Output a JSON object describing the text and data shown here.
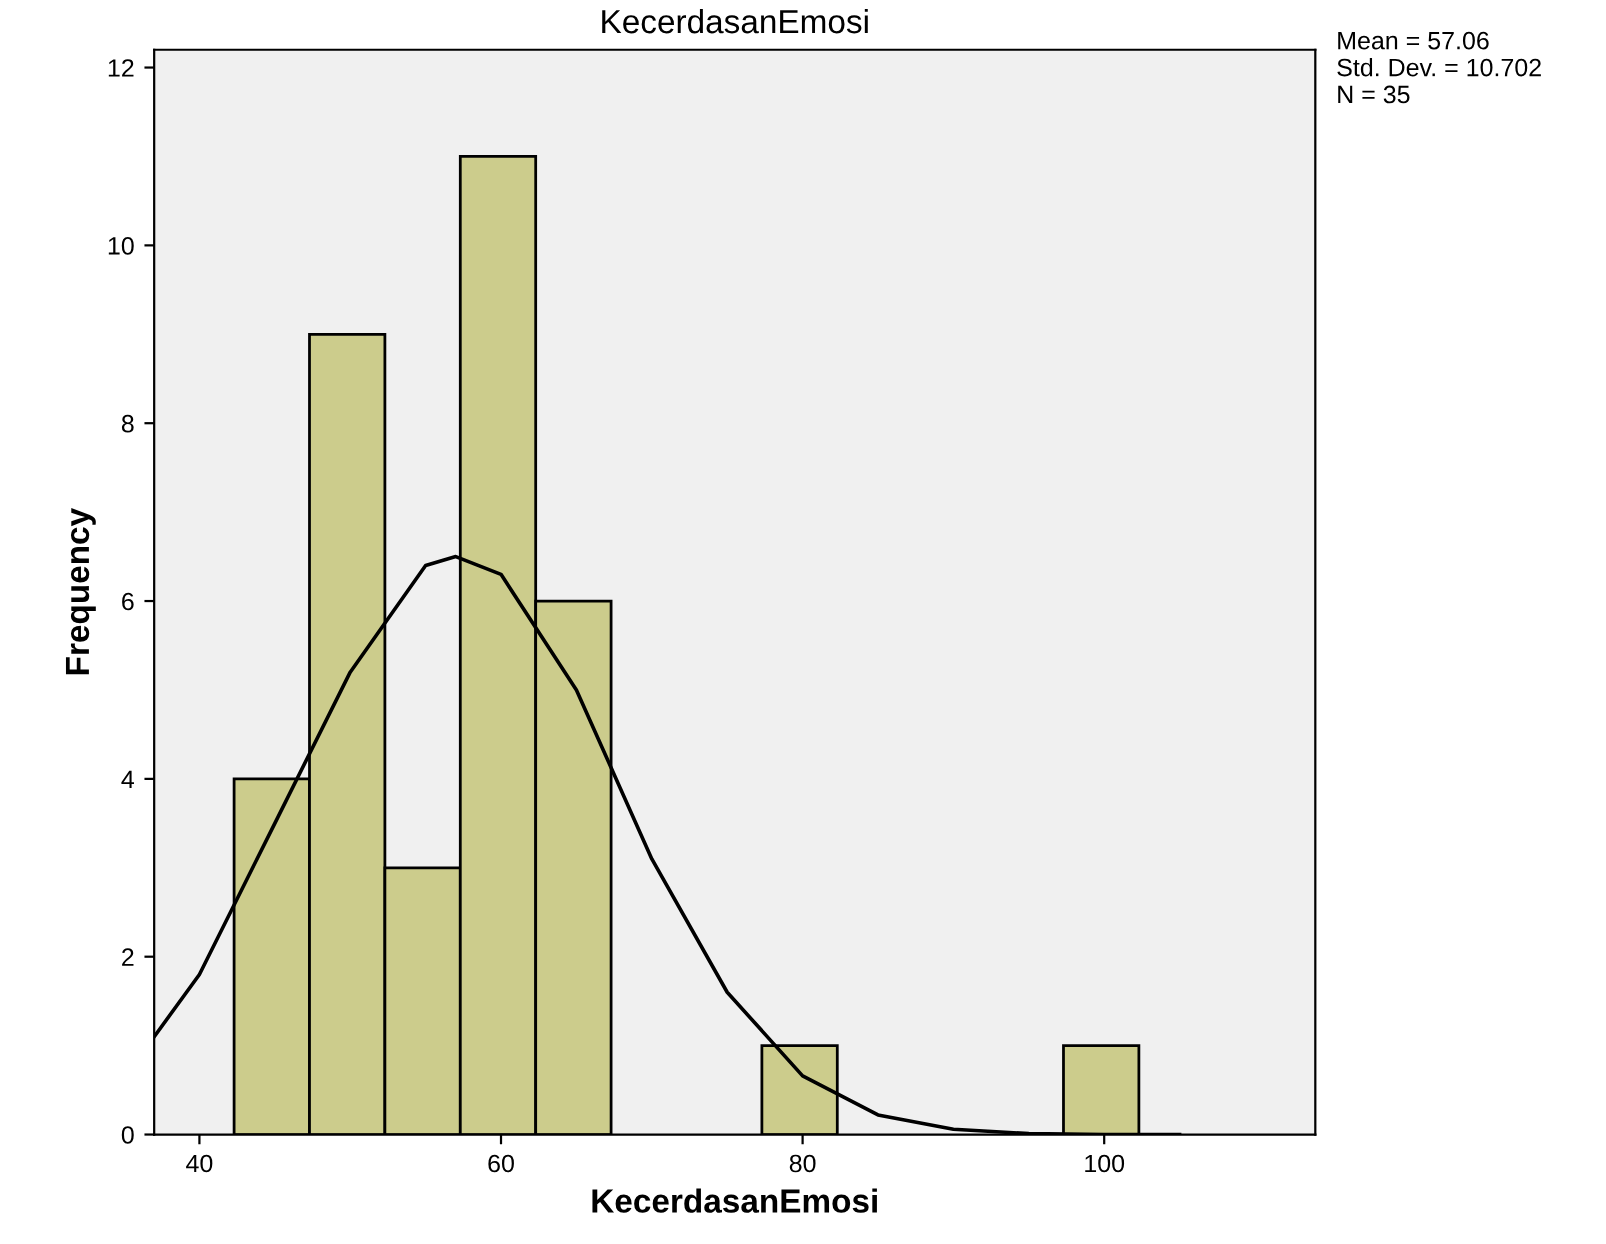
{
  "chart_data": {
    "type": "histogram",
    "title": "KecerdasanEmosi",
    "xlabel": "KecerdasanEmosi",
    "ylabel": "Frequency",
    "bins": [
      42.3,
      47.3,
      52.3,
      57.3,
      62.3,
      67.3,
      72.3,
      77.3,
      82.3,
      87.3,
      92.3,
      97.3,
      102.3
    ],
    "values": [
      4,
      9,
      3,
      11,
      6,
      0,
      0,
      1,
      0,
      0,
      0,
      1
    ],
    "color": "#cccc8c",
    "series": [
      {
        "type": "line",
        "color": "#000000",
        "x": [
          37,
          40,
          45,
          50,
          55,
          57,
          60,
          65,
          70,
          75,
          80,
          85,
          90,
          95,
          100,
          105
        ],
        "values": [
          1.1,
          1.8,
          3.5,
          5.2,
          6.4,
          6.5,
          6.3,
          5.0,
          3.1,
          1.6,
          0.66,
          0.22,
          0.06,
          0.01,
          0,
          0
        ]
      }
    ],
    "xlim": [
      37,
      114
    ],
    "ylim": [
      0,
      12.2
    ],
    "xticks": [
      40,
      60,
      80,
      100
    ],
    "yticks": [
      0,
      2,
      4,
      6,
      8,
      10,
      12
    ],
    "grid": false,
    "legend": false,
    "annotations": [
      "Mean = 57.06\nStd. Dev. = 10.702\nN = 35"
    ]
  }
}
